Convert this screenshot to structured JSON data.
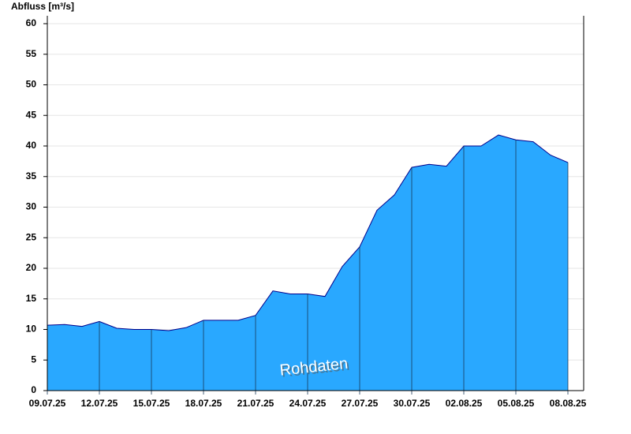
{
  "chart_data": {
    "type": "area",
    "y_label": "Abfluss [m³/s]",
    "annotation": "Rohdaten",
    "x": [
      "09.07.25",
      "10.07.25",
      "11.07.25",
      "12.07.25",
      "13.07.25",
      "14.07.25",
      "15.07.25",
      "16.07.25",
      "17.07.25",
      "18.07.25",
      "19.07.25",
      "20.07.25",
      "21.07.25",
      "22.07.25",
      "23.07.25",
      "24.07.25",
      "25.07.25",
      "26.07.25",
      "27.07.25",
      "28.07.25",
      "29.07.25",
      "30.07.25",
      "31.07.25",
      "01.08.25",
      "02.08.25",
      "03.08.25",
      "04.08.25",
      "05.08.25",
      "06.08.25",
      "07.08.25",
      "08.08.25"
    ],
    "values": [
      10.7,
      10.8,
      10.5,
      11.3,
      10.2,
      10.0,
      10.0,
      9.8,
      10.3,
      11.5,
      11.5,
      11.5,
      12.3,
      16.3,
      15.8,
      15.8,
      15.4,
      20.3,
      23.5,
      29.5,
      32,
      36.5,
      37,
      36.7,
      40,
      40,
      41.8,
      41,
      40.7,
      38.5,
      37.3
    ],
    "xticks": [
      "09.07.25",
      "12.07.25",
      "15.07.25",
      "18.07.25",
      "21.07.25",
      "24.07.25",
      "27.07.25",
      "30.07.25",
      "02.08.25",
      "05.08.25",
      "08.08.25"
    ],
    "color": "#29a8ff",
    "ylim": [
      0,
      60
    ],
    "yticks": [
      0,
      5,
      10,
      15,
      20,
      25,
      30,
      35,
      40,
      45,
      50,
      55,
      60
    ],
    "grid": true
  }
}
